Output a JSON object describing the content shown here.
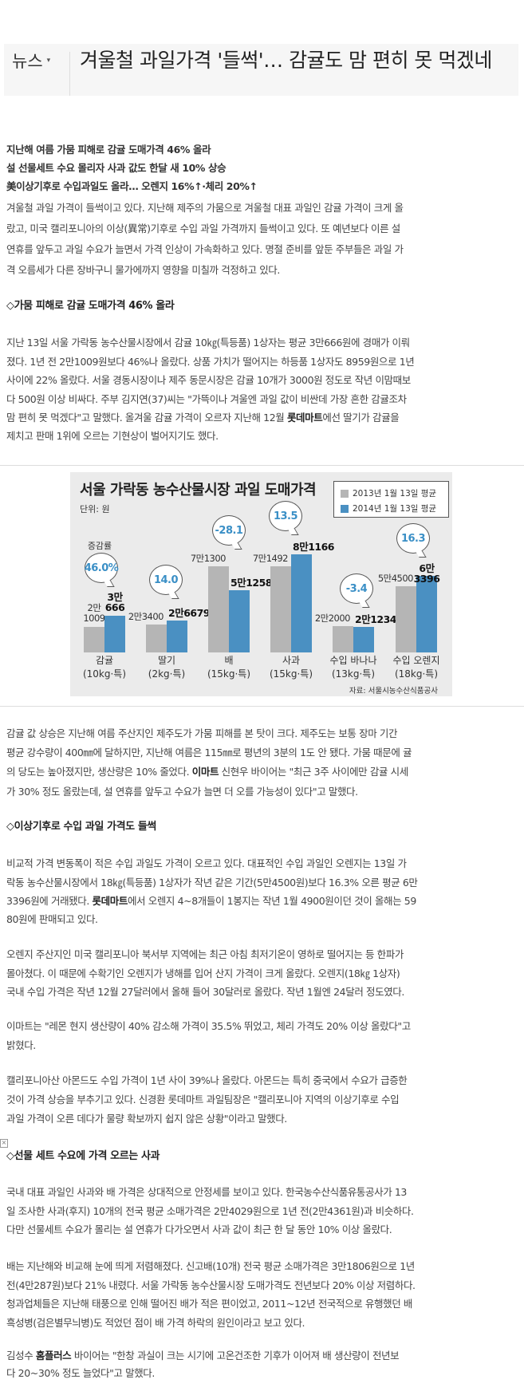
{
  "header": {
    "section": "뉴스",
    "section_caret": "▾",
    "title": "겨울철 과일가격 '들썩'… 감귤도 맘 편히 못 먹겠네"
  },
  "article": {
    "blocks": [
      {
        "type": "lead",
        "lines": [
          "지난해 여름 가뭄 피해로 감귤 도매가격 46% 올라",
          "설 선물세트 수요 몰리자 사과 값도 한달 새 10% 상승",
          "美이상기후로 수입과일도 올라… 오렌지 16%↑·체리 20%↑"
        ]
      },
      {
        "type": "p",
        "lines": [
          "겨울철 과일 가격이 들썩이고 있다. 지난해 제주의 가뭄으로 겨울철 대표 과일인 감귤 가격이 크게 올",
          "랐고, 미국 캘리포니아의 이상(異常)기후로 수입 과일 가격까지 들썩이고 있다. 또 예년보다 이른 설",
          "연휴를 앞두고 과일 수요가 늘면서 가격 인상이 가속화하고 있다. 명절 준비를 앞둔 주부들은 과일 가",
          "격 오름세가 다른 장바구니 물가에까지 영향을 미칠까 걱정하고 있다."
        ]
      },
      {
        "type": "h",
        "lines": [
          "◇가뭄 피해로 감귤 도매가격 46% 올라"
        ]
      },
      {
        "type": "p",
        "lines": [
          "지난 13일 서울 가락동 농수산물시장에서 감귤 10㎏(특등품) 1상자는 평균 3만666원에 경매가 이뤄",
          "졌다. 1년 전 2만1009원보다 46%나 올랐다. 상품 가치가 떨어지는 하등품 1상자도 8959원으로 1년",
          "사이에 22% 올랐다. 서울 경동시장이나 제주 동문시장은 감귤 10개가 3000원 정도로 작년 이맘때보",
          "다 500원 이상 비싸다. 주부 김지연(37)씨는 \"가뜩이나 겨울엔 과일 값이 비싼데 가장 흔한 감귤조차",
          [
            {
              "text": "맘 편히 못 먹겠다\"고 말했다. 올겨울 감귤 가격이 오르자 지난해 12월 "
            },
            {
              "text": "롯데마트",
              "bold": true
            },
            {
              "text": "에선 딸기가 감귤을"
            }
          ],
          "제치고 판매 1위에 오르는 기현상이 벌어지기도 했다."
        ]
      },
      {
        "type": "p",
        "lines": [
          "감귤 값 상승은 지난해 여름 주산지인 제주도가 가뭄 피해를 본 탓이 크다. 제주도는 보통 장마 기간",
          "평균 강수량이 400㎜에 달하지만, 지난해 여름은 115㎜로 평년의 3분의 1도 안 됐다. 가뭄 때문에 귤",
          [
            {
              "text": "의 당도는 높아졌지만, 생산량은 10% 줄었다. "
            },
            {
              "text": "이마트",
              "bold": true
            },
            {
              "text": " 신현우 바이어는 \"최근 3주 사이에만 감귤 시세"
            }
          ],
          "가 30% 정도 올랐는데, 설 연휴를 앞두고 수요가 늘면 더 오를 가능성이 있다\"고 말했다."
        ]
      },
      {
        "type": "h",
        "lines": [
          "◇이상기후로 수입 과일 가격도 들썩"
        ]
      },
      {
        "type": "p",
        "lines": [
          "비교적 가격 변동폭이 적은 수입 과일도 가격이 오르고 있다. 대표적인 수입 과일인 오렌지는 13일 가",
          "락동 농수산물시장에서 18㎏(특등품) 1상자가 작년 같은 기간(5만4500원)보다 16.3% 오른 평균 6만",
          [
            {
              "text": "3396원에 거래됐다. "
            },
            {
              "text": "롯데마트",
              "bold": true
            },
            {
              "text": "에서 오렌지 4~8개들이 1봉지는 작년 1월 4900원이던 것이 올해는 59"
            }
          ],
          "80원에 판매되고 있다."
        ]
      },
      {
        "type": "p",
        "lines": [
          "오렌지 주산지인 미국 캘리포니아 북서부 지역에는 최근 아침 최저기온이 영하로 떨어지는 등 한파가",
          "몰아쳤다. 이 때문에 수확기인 오렌지가 냉해를 입어 산지 가격이 크게 올랐다. 오렌지(18㎏ 1상자)",
          "국내 수입 가격은 작년 12월 27달러에서 올해 들어 30달러로 올랐다. 작년 1월엔 24달러 정도였다."
        ]
      },
      {
        "type": "p",
        "lines": [
          "이마트는 \"레몬 현지 생산량이 40% 감소해 가격이 35.5% 뛰었고, 체리 가격도 20% 이상 올랐다\"고",
          "밝혔다."
        ]
      },
      {
        "type": "p",
        "lines": [
          "캘리포니아산 아몬드도 수입 가격이 1년 사이 39%나 올랐다. 아몬드는 특히 중국에서 수요가 급증한",
          "것이 가격 상승을 부추기고 있다. 신경환 롯데마트 과일팀장은 \"캘리포니아 지역의 이상기후로 수입",
          "과일 가격이 오른 데다가 물량 확보까지 쉽지 않은 상황\"이라고 말했다."
        ]
      },
      {
        "type": "h",
        "lines": [
          "◇선물 세트 수요에 가격 오르는 사과"
        ]
      },
      {
        "type": "p",
        "lines": [
          "국내 대표 과일인 사과와 배 가격은 상대적으로 안정세를 보이고 있다. 한국농수산식품유통공사가 13",
          "일 조사한 사과(후지) 10개의 전국 평균 소매가격은 2만4029원으로 1년 전(2만4361원)과 비슷하다.",
          "다만 선물세트 수요가 몰리는 설 연휴가 다가오면서 사과 값이 최근 한 달 동안 10% 이상 올랐다."
        ]
      },
      {
        "type": "p",
        "lines": [
          "배는 지난해와 비교해 눈에 띄게 저렴해졌다. 신고배(10개) 전국 평균 소매가격은 3만1806원으로 1년",
          "전(4만287원)보다 21% 내렸다. 서울 가락동 농수산물시장 도매가격도 전년보다 20% 이상 저렴하다.",
          "청과업체들은 지난해 태풍으로 인해 떨어진 배가 적은 편이었고, 2011~12년 전국적으로 유행했던 배",
          "흑성병(검은별무늬병)도 적었던 점이 배 가격 하락의 원인이라고 보고 있다."
        ]
      },
      {
        "type": "p",
        "lines": [
          [
            {
              "text": "김성수 "
            },
            {
              "text": "홈플러스",
              "bold": true
            },
            {
              "text": " 바이어는 \"한창 과실이 크는 시기에 고온건조한 기후가 이어져 배 생산량이 전년보"
            }
          ],
          "다 20~30% 정도 늘었다\"고 말했다."
        ]
      }
    ],
    "broken_image_icon": "×"
  },
  "chart_data": {
    "type": "bar",
    "title": "서울 가락동 농수산물시장 과일 도매가격",
    "unit": "단위: 원",
    "rate_label": "증감률",
    "source": "자료: 서울시농수산식품공사",
    "legend_placement": "top-right",
    "categories": [
      {
        "name": "감귤",
        "unit": "(10kg·특)"
      },
      {
        "name": "딸기",
        "unit": "(2kg·특)"
      },
      {
        "name": "배",
        "unit": "(15kg·특)"
      },
      {
        "name": "사과",
        "unit": "(15kg·특)"
      },
      {
        "name": "수입 바나나",
        "unit": "(13kg·특)"
      },
      {
        "name": "수입 오렌지",
        "unit": "(18kg·특)"
      }
    ],
    "series": [
      {
        "name": "2013년 1월 13일 평균",
        "color": "#b5b5b5",
        "values": [
          21009,
          23400,
          71300,
          71492,
          22000,
          54500
        ],
        "labels": [
          "2만\n1009",
          "2만3400",
          "7만1300",
          "7만1492",
          "2만2000",
          "5만4500"
        ]
      },
      {
        "name": "2014년 1월 13일 평균",
        "color": "#4a90c2",
        "values": [
          30666,
          26679,
          51258,
          81166,
          21234,
          63396
        ],
        "labels": [
          "3만\n666",
          "2만6679",
          "5만1258",
          "8만1166",
          "2만1234",
          "6만3396"
        ]
      }
    ],
    "change_rates": [
      "46.0%",
      "14.0",
      "-28.1",
      "13.5",
      "-3.4",
      "16.3"
    ]
  }
}
